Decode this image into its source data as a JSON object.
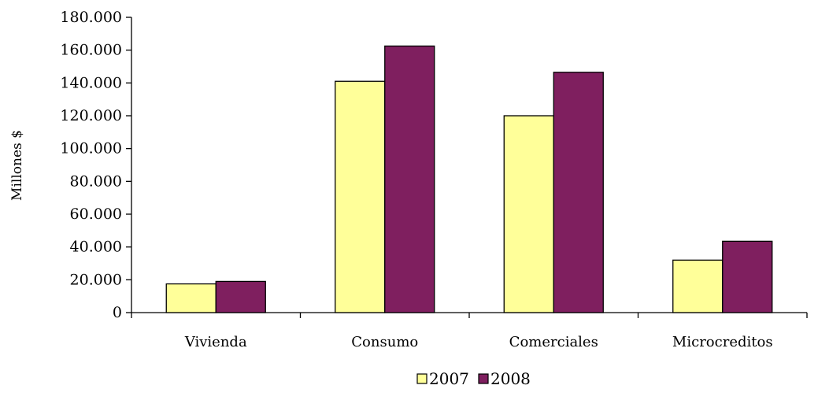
{
  "chart_data": {
    "type": "bar",
    "categories": [
      "Vivienda",
      "Consumo",
      "Comerciales",
      "Microcreditos"
    ],
    "series": [
      {
        "name": "2007",
        "values": [
          17500,
          141000,
          120000,
          32000
        ],
        "color": "#FFFF99"
      },
      {
        "name": "2008",
        "values": [
          19000,
          162500,
          146500,
          43500
        ],
        "color": "#7F1F5F"
      }
    ],
    "ylabel": "Millones $",
    "ylim": [
      0,
      180000
    ],
    "yticks": [
      0,
      20000,
      40000,
      60000,
      80000,
      100000,
      120000,
      140000,
      160000,
      180000
    ],
    "ytick_labels": [
      "0",
      "20.000",
      "40.000",
      "60.000",
      "80.000",
      "100.000",
      "120.000",
      "140.000",
      "160.000",
      "180.000"
    ],
    "grid": false,
    "legend": "bottom"
  }
}
